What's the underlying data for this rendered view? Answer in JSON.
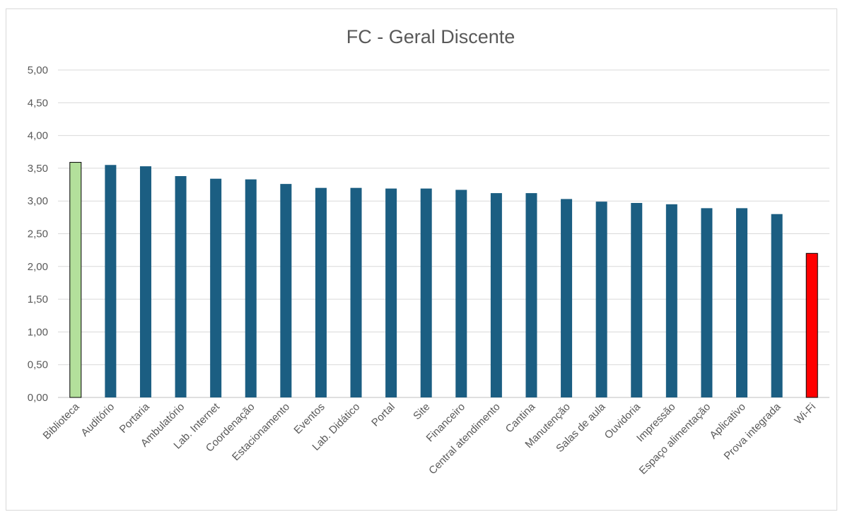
{
  "chart_data": {
    "type": "bar",
    "title": "FC - Geral Discente",
    "xlabel": "",
    "ylabel": "",
    "ylim": [
      0,
      5
    ],
    "yticks": [
      "0,00",
      "0,50",
      "1,00",
      "1,50",
      "2,00",
      "2,50",
      "3,00",
      "3,50",
      "4,00",
      "4,50",
      "5,00"
    ],
    "grid": true,
    "legend": "none",
    "categories": [
      "Biblioteca",
      "Auditório",
      "Portaria",
      "Ambulatório",
      "Lab. Internet",
      "Coordenação",
      "Estacionamento",
      "Eventos",
      "Lab. Didático",
      "Portal",
      "Site",
      "Financeiro",
      "Central atendimento",
      "Cantina",
      "Manutenção",
      "Salas de aula",
      "Ouvidoria",
      "Impressão",
      "Espaço alimentação",
      "Aplicativo",
      "Prova integrada",
      "Wi-Fi"
    ],
    "values": [
      3.59,
      3.55,
      3.53,
      3.38,
      3.34,
      3.33,
      3.26,
      3.2,
      3.2,
      3.19,
      3.19,
      3.17,
      3.12,
      3.12,
      3.03,
      2.99,
      2.97,
      2.95,
      2.89,
      2.89,
      2.8,
      2.2
    ],
    "colors": {
      "default": "#1b5e82",
      "highest": "#b3e09b",
      "lowest": "#ff0000",
      "highlight_border": "#000000"
    }
  }
}
